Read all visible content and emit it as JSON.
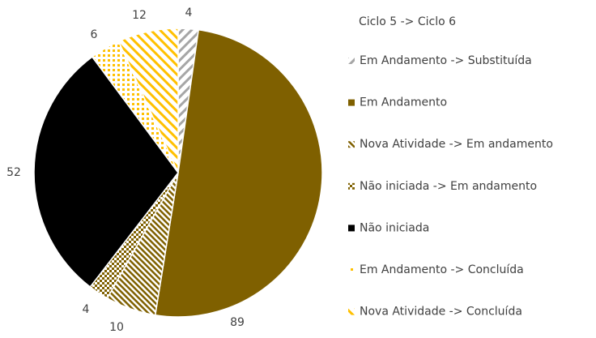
{
  "chart_data": {
    "type": "pie",
    "legend_title": "Ciclo 5 -> Ciclo 6",
    "categories": [
      "Em Andamento -> Substituída",
      "Em Andamento",
      "Nova Atividade -> Em andamento",
      "Não iniciada -> Em andamento",
      "Não iniciada",
      "Em Andamento -> Concluída",
      "Nova Atividade -> Concluída"
    ],
    "values": [
      4,
      89,
      10,
      4,
      52,
      6,
      12
    ],
    "colors": [
      "#a6a6a6",
      "#7f6000",
      "#7f6000",
      "#7f6000",
      "#000000",
      "#ffc000",
      "#ffc000"
    ],
    "patterns": [
      "wide-upward-diagonal",
      "solid",
      "downward-diagonal",
      "checker",
      "solid",
      "dots",
      "wide-downward-diagonal"
    ]
  }
}
